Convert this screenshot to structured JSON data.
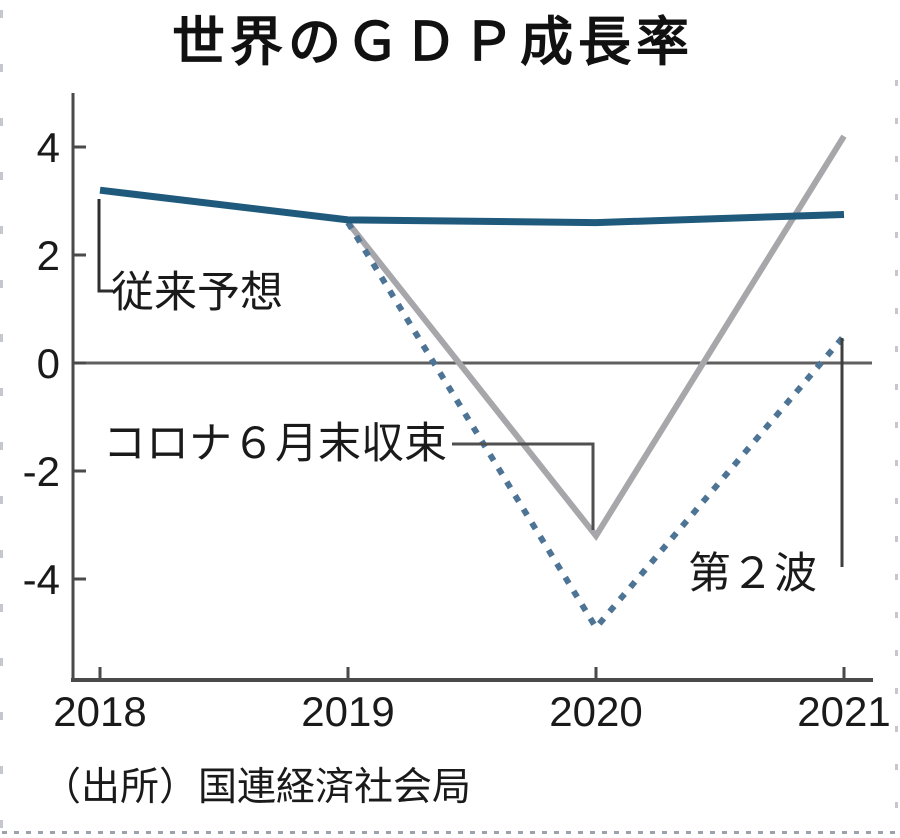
{
  "title": "世界のＧＤＰ成長率",
  "source": "（出所）国連経済社会局",
  "chart_data": {
    "type": "line",
    "x": [
      2018,
      2019,
      2020,
      2021
    ],
    "x_tick_labels": [
      "2018",
      "2019",
      "2020",
      "2021"
    ],
    "y_ticks": [
      4,
      2,
      0,
      -2,
      -4
    ],
    "y_tick_labels": [
      "4",
      "2",
      "0",
      "-2",
      "-4"
    ],
    "ylim": [
      -5.6,
      4.9
    ],
    "xlabel": "",
    "ylabel": "",
    "unit": "%",
    "grid": false,
    "legend_position": "none",
    "zero_line": true,
    "series": [
      {
        "name": "従来予想",
        "key": "baseline-forecast",
        "style": "solid",
        "color": "#1f5a7c",
        "width": 7,
        "points": [
          [
            2018,
            3.2
          ],
          [
            2019,
            2.65
          ],
          [
            2020,
            2.6
          ],
          [
            2021,
            2.75
          ]
        ]
      },
      {
        "name": "コロナ６月末収束",
        "key": "covid-ends-june",
        "style": "solid",
        "color": "#a7a6ab",
        "width": 6,
        "points": [
          [
            2019,
            2.6
          ],
          [
            2020,
            -3.2
          ],
          [
            2021,
            4.2
          ]
        ]
      },
      {
        "name": "第２波",
        "key": "second-wave",
        "style": "dashed",
        "color": "#4d7495",
        "width": 6,
        "points": [
          [
            2019,
            2.6
          ],
          [
            2020,
            -4.9
          ],
          [
            2021,
            0.5
          ]
        ]
      }
    ],
    "annotations": [
      {
        "label": "従来予想",
        "series": "baseline-forecast",
        "anchor": [
          2018,
          3.2
        ]
      },
      {
        "label": "コロナ６月末収束",
        "series": "covid-ends-june",
        "anchor": [
          2020,
          -3.2
        ]
      },
      {
        "label": "第２波",
        "series": "second-wave",
        "anchor": [
          2021,
          0.5
        ]
      }
    ],
    "colors": {
      "text": "#1a1a1a",
      "axis": "#4a4a4a",
      "zero_line": "#5f5f5f",
      "connector": "#4a4a4a",
      "baseline_series": "#1f5a7c",
      "june_end_series": "#a7a6ab",
      "second_wave_series": "#4d7495"
    }
  }
}
